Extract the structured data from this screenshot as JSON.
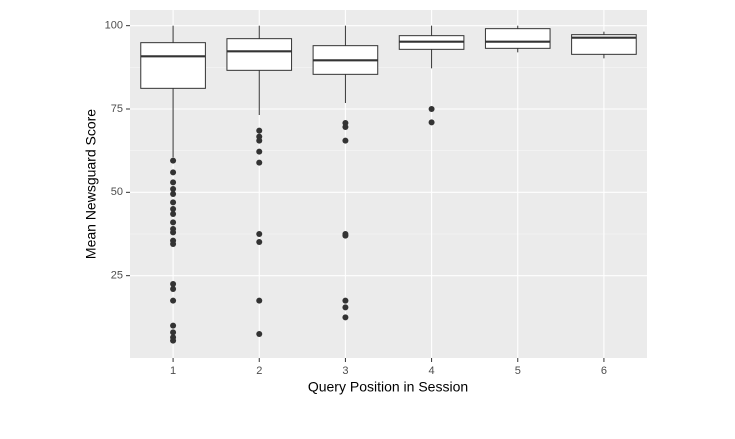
{
  "chart_data": {
    "type": "box",
    "x_label": "Query Position in Session",
    "y_label": "Mean Newsguard Score",
    "categories": [
      "1",
      "2",
      "3",
      "4",
      "5",
      "6"
    ],
    "boxes": [
      {
        "whisker_low": 60.5,
        "q1": 81.2,
        "median": 90.8,
        "q3": 94.9,
        "whisker_high": 100,
        "outliers": [
          59.5,
          56,
          53,
          51,
          49.5,
          47,
          45,
          43.5,
          41,
          39,
          38,
          35.5,
          34.5,
          22.5,
          21,
          17.5,
          10,
          8,
          6.5,
          5.5
        ]
      },
      {
        "whisker_low": 73.2,
        "q1": 86.6,
        "median": 92.3,
        "q3": 96.1,
        "whisker_high": 100,
        "outliers": [
          68.5,
          66.7,
          65.5,
          62.2,
          58.9,
          37.5,
          35.1,
          17.5,
          7.5
        ]
      },
      {
        "whisker_low": 76.8,
        "q1": 85.4,
        "median": 89.6,
        "q3": 94,
        "whisker_high": 100,
        "outliers": [
          70.8,
          69.6,
          65.5,
          37.5,
          37,
          17.5,
          15.5,
          12.5
        ]
      },
      {
        "whisker_low": 87.2,
        "q1": 92.9,
        "median": 95.2,
        "q3": 97,
        "whisker_high": 100,
        "outliers": [
          75,
          71
        ]
      },
      {
        "whisker_low": 92,
        "q1": 93.2,
        "median": 95.2,
        "q3": 99.1,
        "whisker_high": 100,
        "outliers": []
      },
      {
        "whisker_low": 90.2,
        "q1": 91.4,
        "median": 96.4,
        "q3": 97.3,
        "whisker_high": 98.2,
        "outliers": []
      }
    ],
    "ylim": [
      0.3,
      104.7
    ],
    "yticks": [
      25,
      50,
      75,
      100
    ],
    "grid": true,
    "box_fill": "#ffffff",
    "line_color": "#333333",
    "panel_color": "#ebebeb"
  }
}
